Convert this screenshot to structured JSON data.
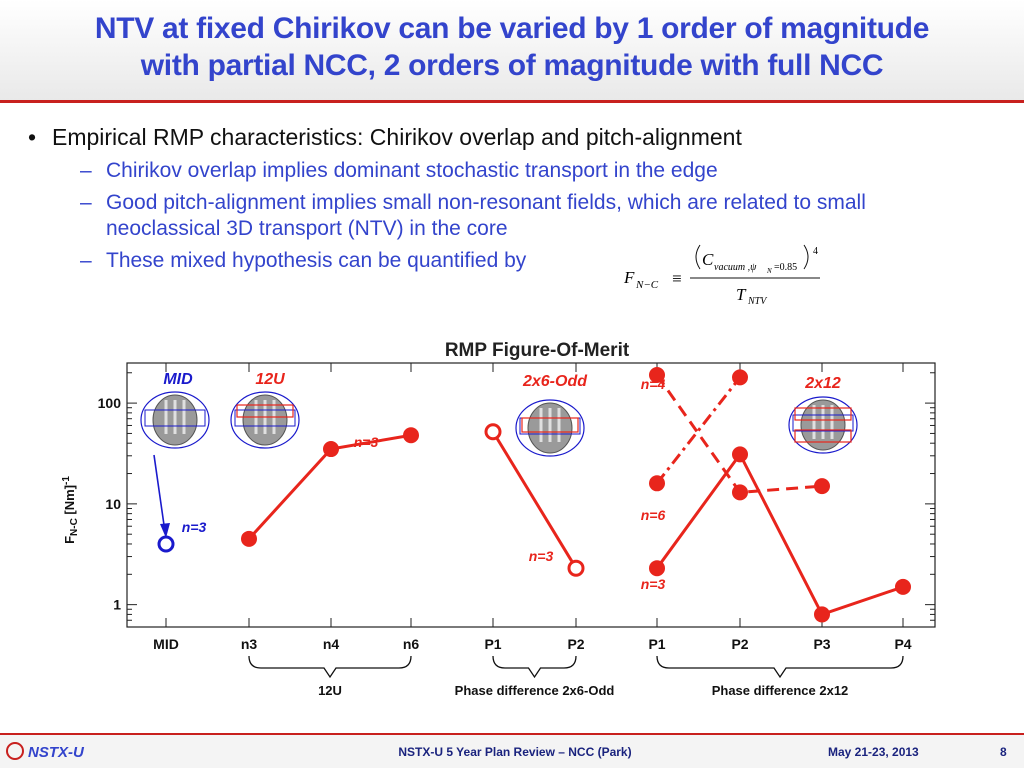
{
  "slide": {
    "title_line1": "NTV at fixed Chirikov can be varied by 1 order of magnitude",
    "title_line2": "with partial NCC, 2 orders of magnitude with full NCC",
    "bullet": "Empirical RMP characteristics: Chirikov overlap and pitch-alignment",
    "sub_bullets": [
      "Chirikov overlap implies dominant stochastic transport in the edge",
      "Good pitch-alignment implies small non-resonant fields, which are related to small neoclassical 3D transport (NTV) in the core",
      "These mixed hypothesis can be quantified by"
    ],
    "formula": {
      "lhs": "F",
      "lhs_sub": "N−C",
      "equiv": "≡",
      "numerator": "C",
      "numerator_sub": "vacuum ,ψ",
      "numerator_sub2": "N",
      "numerator_value": "=0.85",
      "exponent": "4",
      "denominator": "T",
      "denominator_sub": "NTV"
    }
  },
  "chart_data": {
    "type": "scatter",
    "title": "RMP Figure-Of-Merit",
    "ylabel": "F",
    "ylabel_sub": "N-C",
    "ylabel_unit": " [Nm]",
    "ylabel_sup": "-1",
    "y_scale": "log",
    "ylim": [
      0.6,
      250
    ],
    "y_ticks": [
      1,
      10,
      100
    ],
    "y_tick_labels": [
      "1",
      "10",
      "100"
    ],
    "categories": [
      "MID",
      "n3",
      "n4",
      "n6",
      "P1",
      "P2",
      "P1",
      "P2",
      "P3",
      "P4"
    ],
    "groups": [
      {
        "label": "12U",
        "from": 1,
        "to": 3
      },
      {
        "label": "Phase difference 2x6-Odd",
        "from": 4,
        "to": 5
      },
      {
        "label": "Phase difference 2x12",
        "from": 6,
        "to": 9
      }
    ],
    "configs": [
      {
        "label": "MID",
        "color": "#1a1acc"
      },
      {
        "label": "12U",
        "color": "#e8251c"
      },
      {
        "label": "2x6-Odd",
        "color": "#e8251c"
      },
      {
        "label": "2x12",
        "color": "#e8251c"
      }
    ],
    "series": [
      {
        "name": "MID n=3",
        "color": "#1a1acc",
        "points": [
          {
            "x": 0,
            "y": 4.0
          }
        ],
        "style": "none",
        "marker": "open"
      },
      {
        "name": "12U n=3",
        "color": "#e8251c",
        "points": [
          {
            "x": 1,
            "y": 4.5
          },
          {
            "x": 2,
            "y": 35
          },
          {
            "x": 3,
            "y": 48
          }
        ],
        "style": "solid",
        "marker": "filled"
      },
      {
        "name": "2x6-Odd n=3",
        "color": "#e8251c",
        "points": [
          {
            "x": 4,
            "y": 52
          },
          {
            "x": 5,
            "y": 2.3
          }
        ],
        "style": "solid",
        "marker": "open"
      },
      {
        "name": "2x12 n=3",
        "color": "#e8251c",
        "points": [
          {
            "x": 6,
            "y": 2.3
          },
          {
            "x": 7,
            "y": 31
          },
          {
            "x": 8,
            "y": 0.8
          },
          {
            "x": 9,
            "y": 1.5
          }
        ],
        "style": "solid",
        "marker": "filled"
      },
      {
        "name": "2x12 n=4",
        "color": "#e8251c",
        "points": [
          {
            "x": 6,
            "y": 190
          },
          {
            "x": 7,
            "y": 13
          },
          {
            "x": 8,
            "y": 15
          }
        ],
        "style": "dashed",
        "marker": "filled"
      },
      {
        "name": "2x12 n=6",
        "color": "#e8251c",
        "points": [
          {
            "x": 6,
            "y": 16
          },
          {
            "x": 7,
            "y": 180
          }
        ],
        "style": "dashdot",
        "marker": "filled"
      }
    ],
    "annotations": [
      {
        "text": "n=3",
        "color": "#e8251c"
      },
      {
        "text": "n=3",
        "color": "#1a1acc"
      },
      {
        "text": "n=3",
        "color": "#e8251c"
      },
      {
        "text": "n=4",
        "color": "#e8251c"
      },
      {
        "text": "n=6",
        "color": "#e8251c"
      },
      {
        "text": "n=3",
        "color": "#e8251c"
      }
    ]
  },
  "footer": {
    "logo": "NSTX-U",
    "center": "NSTX-U 5 Year Plan Review – NCC (Park)",
    "date": "May 21-23, 2013",
    "page": "8"
  }
}
